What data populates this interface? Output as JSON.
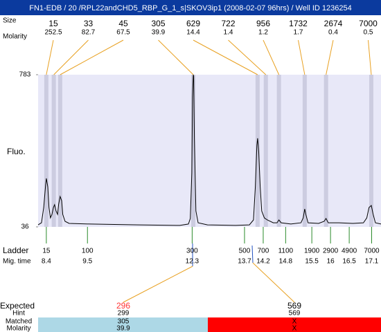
{
  "title": "FN1-EDB / 20 /RPL22andCHD5_RBP_G_1_s|SKOV3ip1 (2008-02-07 96hrs) / Well ID 1236254",
  "chart_data": {
    "type": "electropherogram",
    "y_label": "Fluo.",
    "ylim": [
      36,
      783
    ],
    "yticks": [
      36,
      783
    ],
    "xlim": [
      8.18,
      17.35
    ],
    "trace": {
      "color": "#000000",
      "x": [
        8.18,
        8.27,
        8.33,
        8.38,
        8.4,
        8.44,
        8.47,
        8.51,
        8.55,
        8.59,
        8.62,
        8.66,
        8.7,
        8.73,
        8.77,
        8.81,
        8.84,
        8.9,
        9.01,
        9.57,
        10.86,
        11.97,
        12.2,
        12.25,
        12.29,
        12.31,
        12.33,
        12.34,
        12.36,
        12.4,
        12.46,
        12.71,
        13.46,
        13.83,
        13.94,
        13.99,
        14.03,
        14.05,
        14.08,
        14.12,
        14.16,
        14.23,
        14.31,
        14.47,
        14.57,
        14.62,
        14.68,
        14.94,
        15.21,
        15.27,
        15.31,
        15.34,
        15.4,
        15.68,
        15.83,
        15.88,
        15.94,
        16.23,
        16.6,
        16.88,
        16.97,
        17.03,
        17.09,
        17.14,
        17.2,
        17.35
      ],
      "values": [
        46,
        56,
        131,
        240,
        274,
        233,
        131,
        80,
        97,
        131,
        145,
        114,
        97,
        148,
        185,
        165,
        97,
        63,
        53,
        50,
        46,
        43,
        50,
        77,
        301,
        674,
        783,
        776,
        471,
        114,
        56,
        46,
        43,
        46,
        70,
        233,
        437,
        471,
        403,
        233,
        114,
        80,
        70,
        56,
        56,
        70,
        56,
        50,
        56,
        80,
        124,
        97,
        56,
        53,
        63,
        77,
        56,
        56,
        53,
        56,
        80,
        131,
        141,
        97,
        56,
        50
      ]
    },
    "peaks": {
      "size_label": "Size",
      "molarity_label": "Molarity",
      "color": "#cccce0",
      "line_color": "#e8a020",
      "sizes": [
        15,
        33,
        45,
        305,
        629,
        722,
        956,
        1732,
        2674,
        7000
      ],
      "molarity": [
        252.5,
        82.7,
        67.5,
        39.9,
        14.4,
        1.4,
        1.2,
        1.7,
        0.4,
        0.5
      ],
      "x": [
        8.4,
        8.6,
        8.77,
        12.33,
        14.05,
        14.27,
        14.62,
        15.31,
        15.88,
        17.09
      ]
    },
    "ladder": {
      "label": "Ladder",
      "time_label": "Mig. time",
      "color": "#2a8a2a",
      "sizes": [
        15,
        100,
        300,
        500,
        700,
        1100,
        1900,
        2900,
        4900,
        7000
      ],
      "x": [
        8.4,
        9.5,
        12.3,
        13.7,
        14.2,
        14.8,
        15.5,
        16,
        16.5,
        17.1
      ]
    }
  },
  "expected": {
    "label": "Expected",
    "hint_label": "Hint",
    "matched_label": "Matched",
    "molarity_label": "Molarity",
    "columns": [
      {
        "expected": 296,
        "color": "#ff3333",
        "hint": 299,
        "matched": 305,
        "molarity": 39.9,
        "fill": "#add8e6"
      },
      {
        "expected": 569,
        "color": "#000000",
        "hint": 569,
        "matched": "X",
        "molarity": "X",
        "fill": "#ff0000"
      }
    ]
  }
}
